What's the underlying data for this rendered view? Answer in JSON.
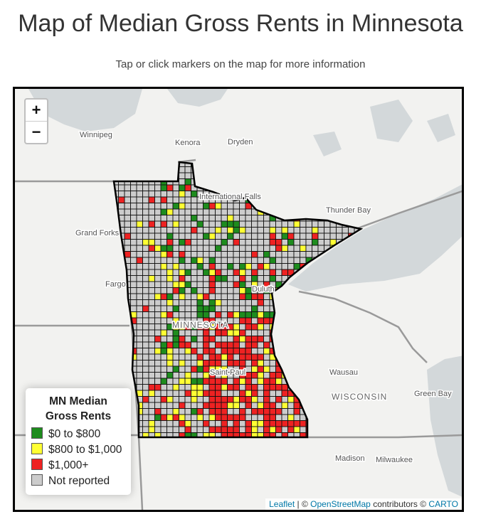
{
  "header": {
    "title": "Map of Median Gross Rents in Minnesota",
    "subtitle": "Tap or click markers on the map for more information"
  },
  "map": {
    "zoom_in": "+",
    "zoom_out": "−",
    "places": [
      "Winnipeg",
      "Kenora",
      "Dryden",
      "International Falls",
      "Thunder Bay",
      "Grand Forks",
      "Fargo",
      "Duluth",
      "MINNESOTA",
      "Saint Paul",
      "Wausau",
      "WISCONSIN",
      "Green Bay",
      "Madison",
      "Milwaukee"
    ],
    "legend": {
      "title": "MN Median Gross Rents",
      "items": [
        {
          "label": "$0 to $800",
          "color": "#1e8c1e"
        },
        {
          "label": "$800 to $1,000",
          "color": "#ffff33"
        },
        {
          "label": "$1,000+",
          "color": "#ee2222"
        },
        {
          "label": "Not reported",
          "color": "#cccccc"
        }
      ]
    },
    "attribution": [
      "Leaflet",
      "| ©",
      "OpenStreetMap",
      "contributors ©",
      "CARTO"
    ]
  }
}
